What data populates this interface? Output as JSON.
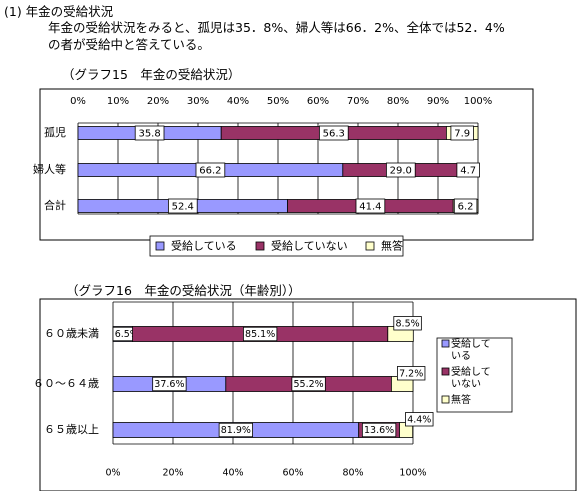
{
  "section_heading": "(1) 年金の受給状況",
  "paragraph_lines": [
    "年金の受給状況をみると、孤児は35．8%、婦人等は66．2%、全体では52．4%",
    "の者が受給中と答えている。"
  ],
  "colors": {
    "received": "#9999ff",
    "not_received": "#993366",
    "no_answer": "#ffffcc"
  },
  "chart_data": [
    {
      "type": "bar",
      "orientation": "horizontal",
      "stacked": "percent",
      "title": "（グラフ15　年金の受給状況）",
      "categories": [
        "孤児",
        "婦人等",
        "合計"
      ],
      "series": [
        {
          "name": "受給している",
          "values": [
            35.8,
            66.2,
            52.4
          ]
        },
        {
          "name": "受給していない",
          "values": [
            56.3,
            29.0,
            41.4
          ]
        },
        {
          "name": "無答",
          "values": [
            7.9,
            4.7,
            6.2
          ]
        }
      ],
      "data_labels": [
        [
          "35.8",
          "56.3",
          "7.9"
        ],
        [
          "66.2",
          "29.0",
          "4.7"
        ],
        [
          "52.4",
          "41.4",
          "6.2"
        ]
      ],
      "x_ticks": [
        "0%",
        "10%",
        "20%",
        "30%",
        "40%",
        "50%",
        "60%",
        "70%",
        "80%",
        "90%",
        "100%"
      ],
      "xlim": [
        0,
        100
      ],
      "grid": true,
      "legend_position": "bottom"
    },
    {
      "type": "bar",
      "orientation": "horizontal",
      "stacked": "percent",
      "title": "（グラフ16　年金の受給状況（年齢別））",
      "categories": [
        "６０歳未満",
        "６０～６４歳",
        "６５歳以上"
      ],
      "series": [
        {
          "name": "受給している",
          "legend_lines": [
            "受給して",
            "いる"
          ],
          "values": [
            6.5,
            37.6,
            81.9
          ]
        },
        {
          "name": "受給していない",
          "legend_lines": [
            "受給して",
            "いない"
          ],
          "values": [
            85.1,
            55.2,
            13.6
          ]
        },
        {
          "name": "無答",
          "legend_lines": [
            "無答"
          ],
          "values": [
            8.5,
            7.2,
            4.4
          ]
        }
      ],
      "data_labels": [
        [
          "6.5%",
          "85.1%",
          "8.5%"
        ],
        [
          "37.6%",
          "55.2%",
          "7.2%"
        ],
        [
          "81.9%",
          "13.6%",
          "4.4%"
        ]
      ],
      "x_ticks": [
        "0%",
        "20%",
        "40%",
        "60%",
        "80%",
        "100%"
      ],
      "xlim": [
        0,
        100
      ],
      "grid": true,
      "legend_position": "right"
    }
  ]
}
